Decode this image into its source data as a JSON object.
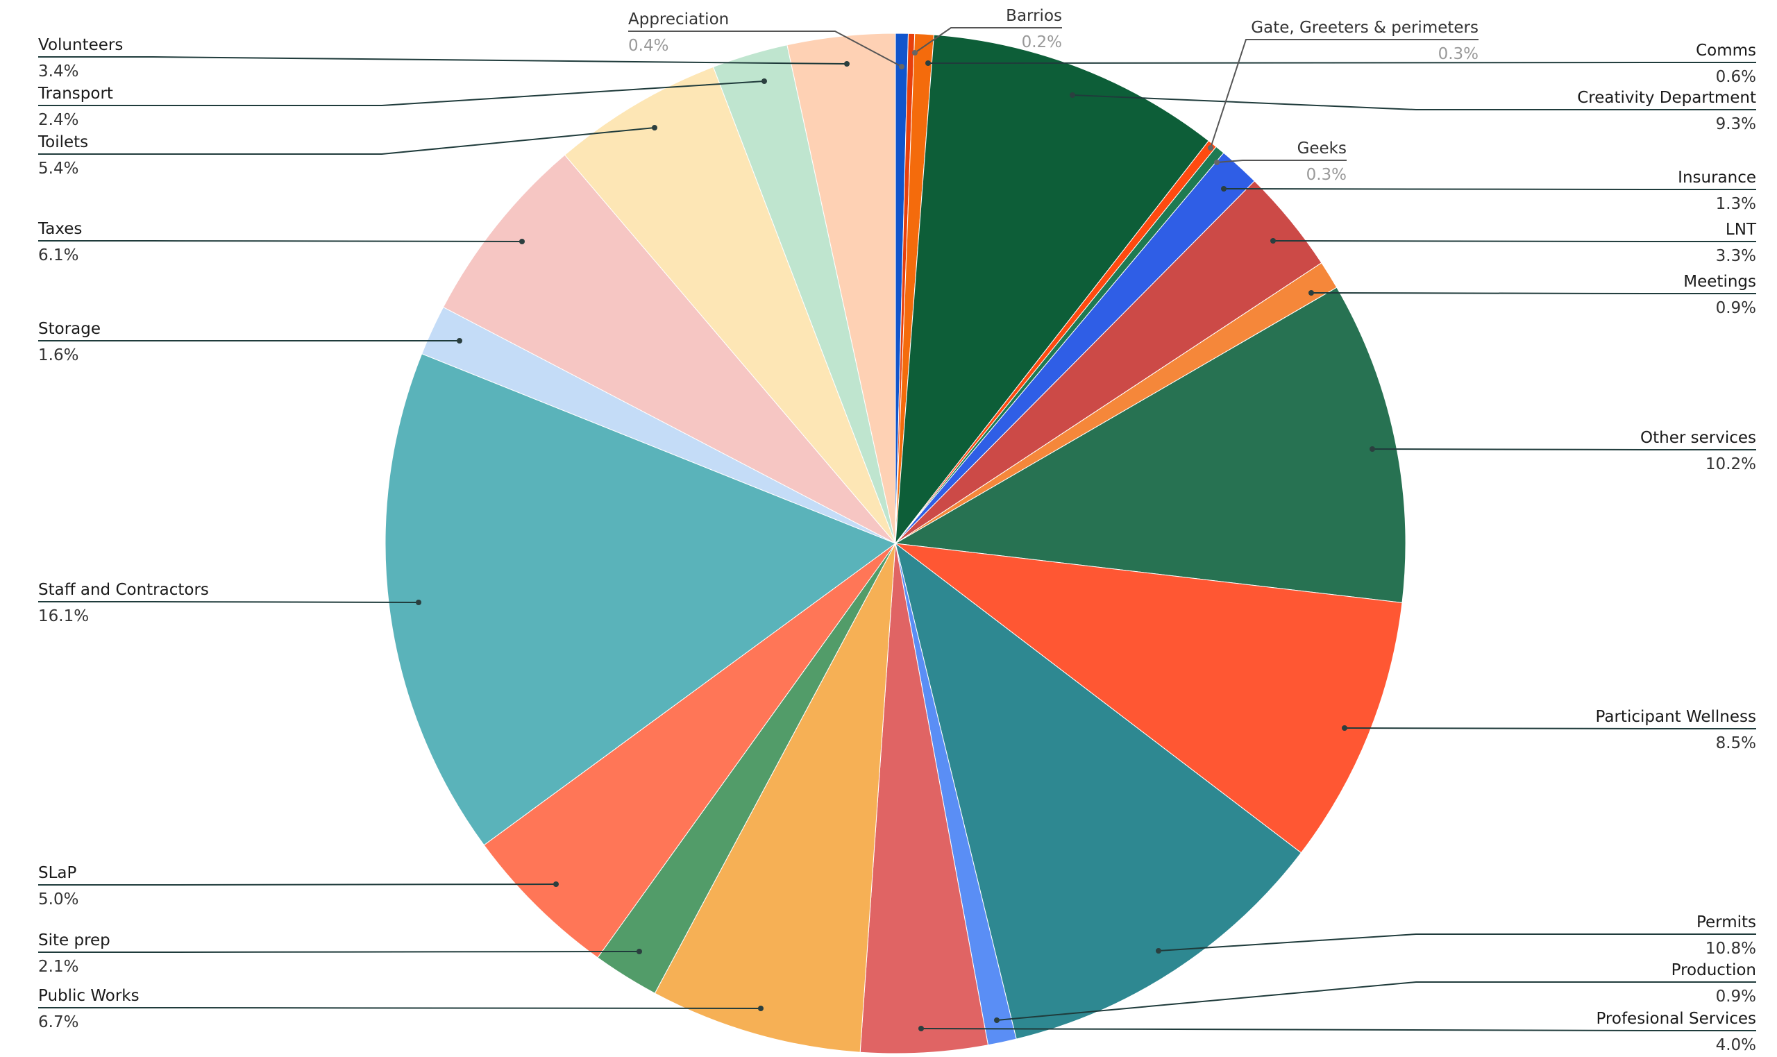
{
  "chart_data": {
    "type": "pie",
    "start": "top",
    "direction": "clockwise",
    "slices": [
      {
        "label": "Appreciation",
        "value": 0.4,
        "value_label": "0.4%",
        "color": "#1155cc"
      },
      {
        "label": "Barrios",
        "value": 0.2,
        "value_label": "0.2%",
        "color": "#e8400c"
      },
      {
        "label": "Comms",
        "value": 0.6,
        "value_label": "0.6%",
        "color": "#f46b0c"
      },
      {
        "label": "Creativity Department",
        "value": 9.3,
        "value_label": "9.3%",
        "color": "#0d5e38"
      },
      {
        "label": "Gate, Greeters & perimeters",
        "value": 0.3,
        "value_label": "0.3%",
        "color": "#ff4a10"
      },
      {
        "label": "Geeks",
        "value": 0.3,
        "value_label": "0.3%",
        "color": "#1e7a52"
      },
      {
        "label": "Insurance",
        "value": 1.3,
        "value_label": "1.3%",
        "color": "#2f5ee6"
      },
      {
        "label": "LNT",
        "value": 3.3,
        "value_label": "3.3%",
        "color": "#cc4a47"
      },
      {
        "label": "Meetings",
        "value": 0.9,
        "value_label": "0.9%",
        "color": "#f5873a"
      },
      {
        "label": "Other services",
        "value": 10.2,
        "value_label": "10.2%",
        "color": "#277252"
      },
      {
        "label": "Participant Wellness",
        "value": 8.5,
        "value_label": "8.5%",
        "color": "#ff5733"
      },
      {
        "label": "Permits",
        "value": 10.8,
        "value_label": "10.8%",
        "color": "#2e8891"
      },
      {
        "label": "Production",
        "value": 0.9,
        "value_label": "0.9%",
        "color": "#5a8ef5"
      },
      {
        "label": "Profesional Services",
        "value": 4.0,
        "value_label": "4.0%",
        "color": "#e06464"
      },
      {
        "label": "Public Works",
        "value": 6.7,
        "value_label": "6.7%",
        "color": "#f6b055"
      },
      {
        "label": "Site prep",
        "value": 2.1,
        "value_label": "2.1%",
        "color": "#529c69"
      },
      {
        "label": "SLaP",
        "value": 5.0,
        "value_label": "5.0%",
        "color": "#ff7657"
      },
      {
        "label": "Staff and Contractors",
        "value": 16.1,
        "value_label": "16.1%",
        "color": "#5ab3ba"
      },
      {
        "label": "Storage",
        "value": 1.6,
        "value_label": "1.6%",
        "color": "#c4dcf7"
      },
      {
        "label": "Taxes",
        "value": 6.1,
        "value_label": "6.1%",
        "color": "#f6c6c3"
      },
      {
        "label": "Toilets",
        "value": 5.4,
        "value_label": "5.4%",
        "color": "#fde6b5"
      },
      {
        "label": "Transport",
        "value": 2.4,
        "value_label": "2.4%",
        "color": "#bfe5cf"
      },
      {
        "label": "Volunteers",
        "value": 3.4,
        "value_label": "3.4%",
        "color": "#fed1b4"
      }
    ],
    "title": "",
    "legend": "none"
  }
}
